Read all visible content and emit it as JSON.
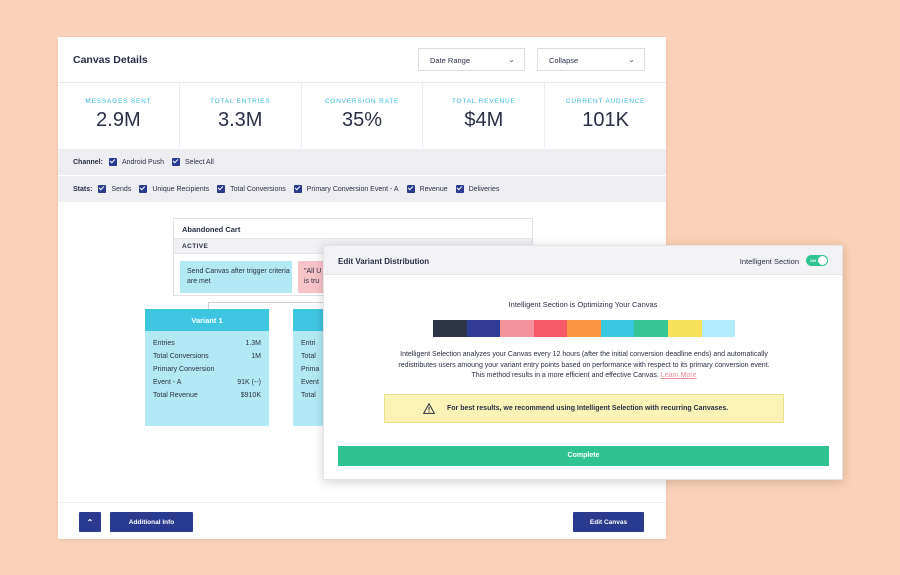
{
  "header": {
    "title": "Canvas Details",
    "date_range": "Date Range",
    "collapse": "Collapse"
  },
  "stats": [
    {
      "label": "MESSAGES SENT",
      "value": "2.9M"
    },
    {
      "label": "TOTAL ENTRIES",
      "value": "3.3M"
    },
    {
      "label": "CONVERSION RATE",
      "value": "35%"
    },
    {
      "label": "TOTAL REVENUE",
      "value": "$4M"
    },
    {
      "label": "CURRENT AUDIENCE",
      "value": "101K"
    }
  ],
  "channel": {
    "label": "Channel:",
    "options": [
      "Android Push",
      "Select All"
    ]
  },
  "stats_filter": {
    "label": "Stats:",
    "options": [
      "Sends",
      "Unique Recipients",
      "Total Conversions",
      "Primary Conversion Event - A",
      "Revenue",
      "Deliveries"
    ]
  },
  "abandoned_cart": {
    "title": "Abandoned Cart",
    "status": "ACTIVE",
    "blue_text": "Send Canvas after trigger criteria are met",
    "pink_text": "\"All U",
    "pink_text2": "is tru"
  },
  "variant1": {
    "title": "Variant 1",
    "rows": [
      {
        "label": "Entries",
        "value": "1.3M"
      },
      {
        "label": "Total Conversions",
        "value": "1M"
      },
      {
        "label": "Primary Conversion",
        "value": ""
      },
      {
        "label": "Event - A",
        "value": "91K (--)"
      },
      {
        "label": "Total Revenue",
        "value": "$910K"
      }
    ]
  },
  "variant2": {
    "rows": [
      "Entri",
      "Total",
      "Prima",
      "Event",
      "Total"
    ]
  },
  "footer": {
    "additional_info": "Additional Info",
    "edit_canvas": "Edit Canvas"
  },
  "modal": {
    "title": "Edit Variant Distribution",
    "toggle_label": "Intelligent Section",
    "toggle_state": "ON",
    "subtitle": "Intelligent Section is Optimizing Your Canvas",
    "distribution_colors": [
      "#2e3545",
      "#2f3b94",
      "#f4949a",
      "#f65a68",
      "#fb9445",
      "#38c7e0",
      "#36c595",
      "#f5e15a",
      "#b2ebf9"
    ],
    "description": "Intelligent Selection analyzes your Canvas every 12 hours (after the initial conversion deadline ends) and automatically redistributes users amoung your variant entry points based on performance with respect to its primary conversion event. This method results in a more efficient and effective Canvas.",
    "learn_more": "Learn More",
    "warning": "For best results, we recommend using Intelligent Selection with recurring Canvases.",
    "complete": "Complete"
  }
}
